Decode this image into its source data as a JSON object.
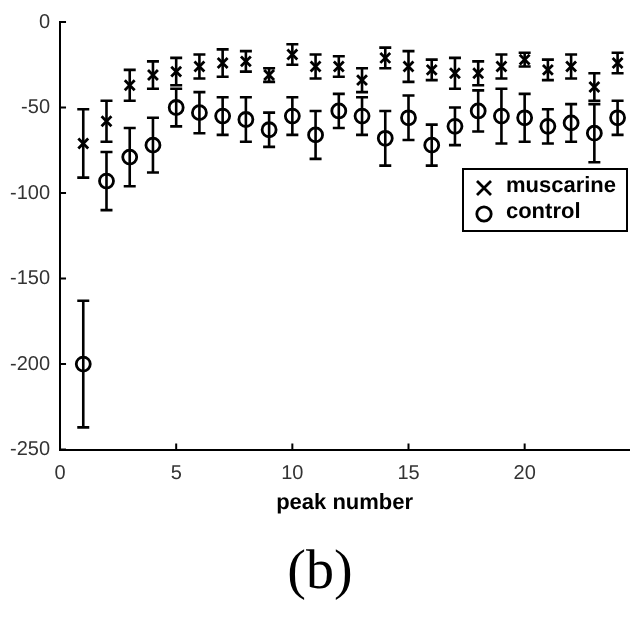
{
  "chart_data": {
    "type": "scatter",
    "xlabel": "peak number",
    "annotations": [
      "(b)"
    ],
    "x": [
      1,
      2,
      3,
      4,
      5,
      6,
      7,
      8,
      9,
      10,
      11,
      12,
      13,
      14,
      15,
      16,
      17,
      18,
      19,
      20,
      21,
      22,
      23,
      24
    ],
    "series": [
      {
        "name": "muscarine",
        "color": "#000000",
        "marker": "cross",
        "values": [
          -71,
          -58,
          -37,
          -31,
          -29,
          -26,
          -24,
          -23,
          -31,
          -19,
          -26,
          -26,
          -34,
          -21,
          -26,
          -28,
          -30,
          -30,
          -26,
          -22,
          -28,
          -26,
          -38,
          -24
        ],
        "errors": [
          20,
          12,
          9,
          8,
          8,
          7,
          8,
          6,
          4,
          6,
          7,
          6,
          7,
          6,
          9,
          6,
          9,
          7,
          7,
          4,
          6,
          7,
          8,
          6
        ]
      },
      {
        "name": "control",
        "color": "#000000",
        "marker": "circle",
        "values": [
          -200,
          -93,
          -79,
          -72,
          -50,
          -53,
          -55,
          -57,
          -63,
          -55,
          -66,
          -52,
          -55,
          -68,
          -56,
          -72,
          -61,
          -52,
          -55,
          -56,
          -61,
          -59,
          -65,
          -56
        ],
        "errors": [
          37,
          17,
          17,
          16,
          11,
          12,
          11,
          13,
          10,
          11,
          14,
          10,
          11,
          16,
          13,
          12,
          11,
          12,
          16,
          14,
          10,
          11,
          17,
          10
        ]
      }
    ],
    "xlim": [
      0,
      24.5
    ],
    "xticks": [
      0,
      5,
      10,
      15,
      20
    ],
    "ylim": [
      -250,
      0
    ],
    "yticks": [
      -250,
      -200,
      -150,
      -100,
      -50,
      0
    ],
    "grid": false,
    "legend": "right"
  }
}
